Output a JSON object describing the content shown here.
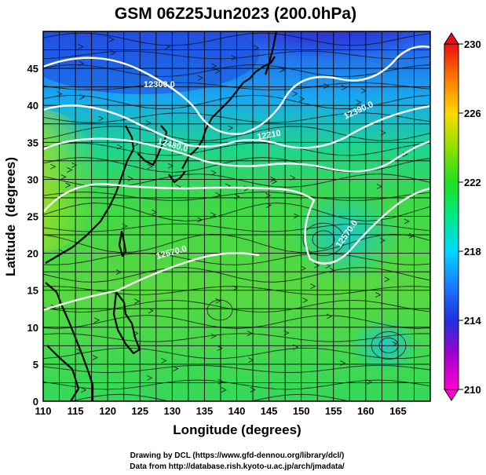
{
  "title": "GSM 06Z25Jun2023 (200.0hPa)",
  "credits": [
    "Drawing by DCL (https://www.gfd-dennou.org/library/dcl/)",
    "Data from http://database.rish.kyoto-u.ac.jp/arch/jmadata/"
  ],
  "chart_data": {
    "type": "heatmap",
    "title": "GSM 06Z25Jun2023 (200.0hPa)",
    "xlabel": "Longitude (degrees)",
    "ylabel": "Latitude  (degrees)",
    "xlim": [
      110,
      170
    ],
    "ylim": [
      0,
      50
    ],
    "x_ticks": [
      110,
      115,
      120,
      125,
      130,
      135,
      140,
      145,
      150,
      155,
      160,
      165
    ],
    "y_ticks": [
      0,
      5,
      10,
      15,
      20,
      25,
      30,
      35,
      40,
      45
    ],
    "grid": true,
    "colorbar": {
      "min": 210,
      "max": 230,
      "ticks": [
        210,
        214,
        218,
        222,
        226,
        230
      ],
      "colormap": "rainbow (magenta-blue-cyan-green-yellow-red)",
      "placement": "right"
    },
    "contour_labels": [
      {
        "text": "12300.0",
        "lon": 127.5,
        "lat": 44
      },
      {
        "text": "12390.0",
        "lon": 154,
        "lat": 39
      },
      {
        "text": "12210",
        "lon": 145,
        "lat": 35
      },
      {
        "text": "12480.0",
        "lon": 130,
        "lat": 35
      },
      {
        "text": "12570.0",
        "lon": 128,
        "lat": 20
      },
      {
        "text": "12570.0",
        "lon": 156,
        "lat": 24
      }
    ],
    "overlays": [
      "streamlines",
      "coastlines",
      "geopotential height contours"
    ]
  }
}
